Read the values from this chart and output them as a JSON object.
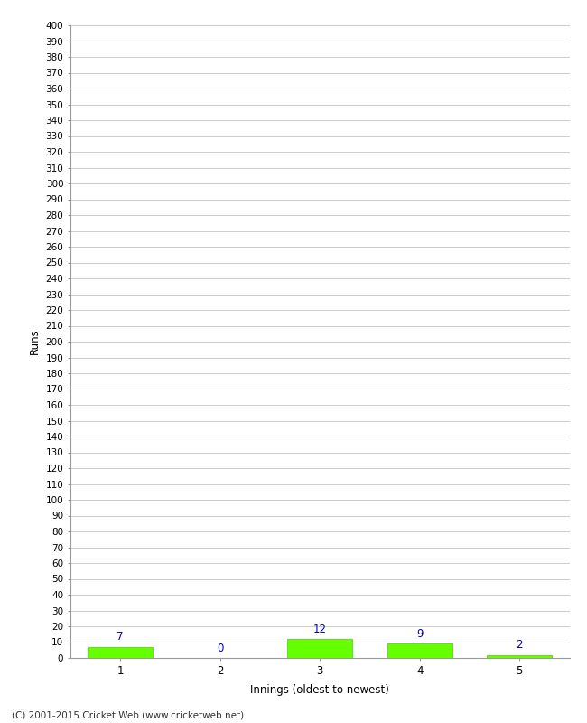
{
  "categories": [
    1,
    2,
    3,
    4,
    5
  ],
  "values": [
    7,
    0,
    12,
    9,
    2
  ],
  "bar_color": "#66ff00",
  "bar_edge_color": "#44cc00",
  "ylabel": "Runs",
  "xlabel": "Innings (oldest to newest)",
  "ylim": [
    0,
    400
  ],
  "ytick_step": 10,
  "value_color": "#0000cc",
  "footer": "(C) 2001-2015 Cricket Web (www.cricketweb.net)",
  "background_color": "#ffffff",
  "grid_color": "#cccccc"
}
